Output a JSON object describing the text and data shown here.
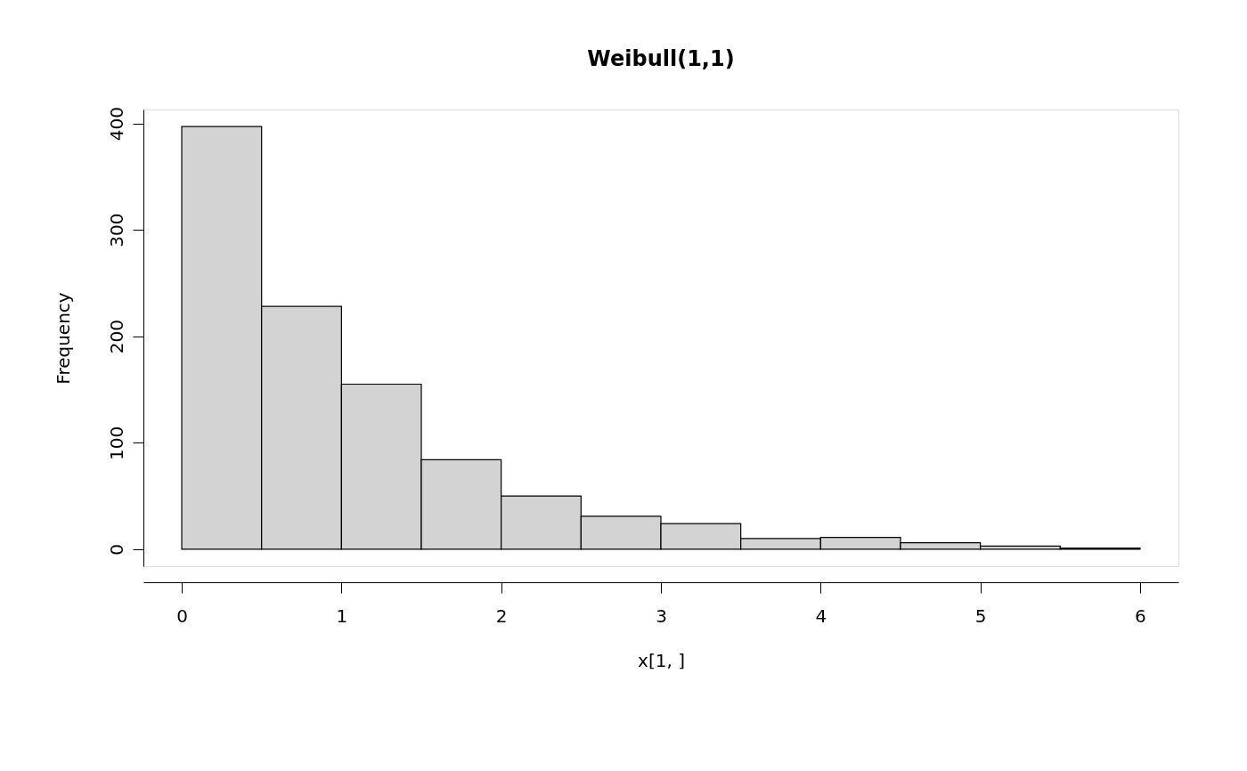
{
  "chart_data": {
    "type": "histogram",
    "title": "Weibull(1,1)",
    "xlabel": "x[1, ]",
    "ylabel": "Frequency",
    "bins": [
      0,
      0.5,
      1,
      1.5,
      2,
      2.5,
      3,
      3.5,
      4,
      4.5,
      5,
      5.5,
      6
    ],
    "values": [
      397,
      228,
      155,
      84,
      50,
      31,
      24,
      10,
      11,
      6,
      3,
      1
    ],
    "color": "#d3d3d3",
    "xlim": [
      -0.24,
      6.24
    ],
    "ylim": [
      -16,
      413
    ],
    "xticks": [
      0,
      1,
      2,
      3,
      4,
      5,
      6
    ],
    "yticks": [
      0,
      100,
      200,
      300,
      400
    ],
    "grid": false
  }
}
